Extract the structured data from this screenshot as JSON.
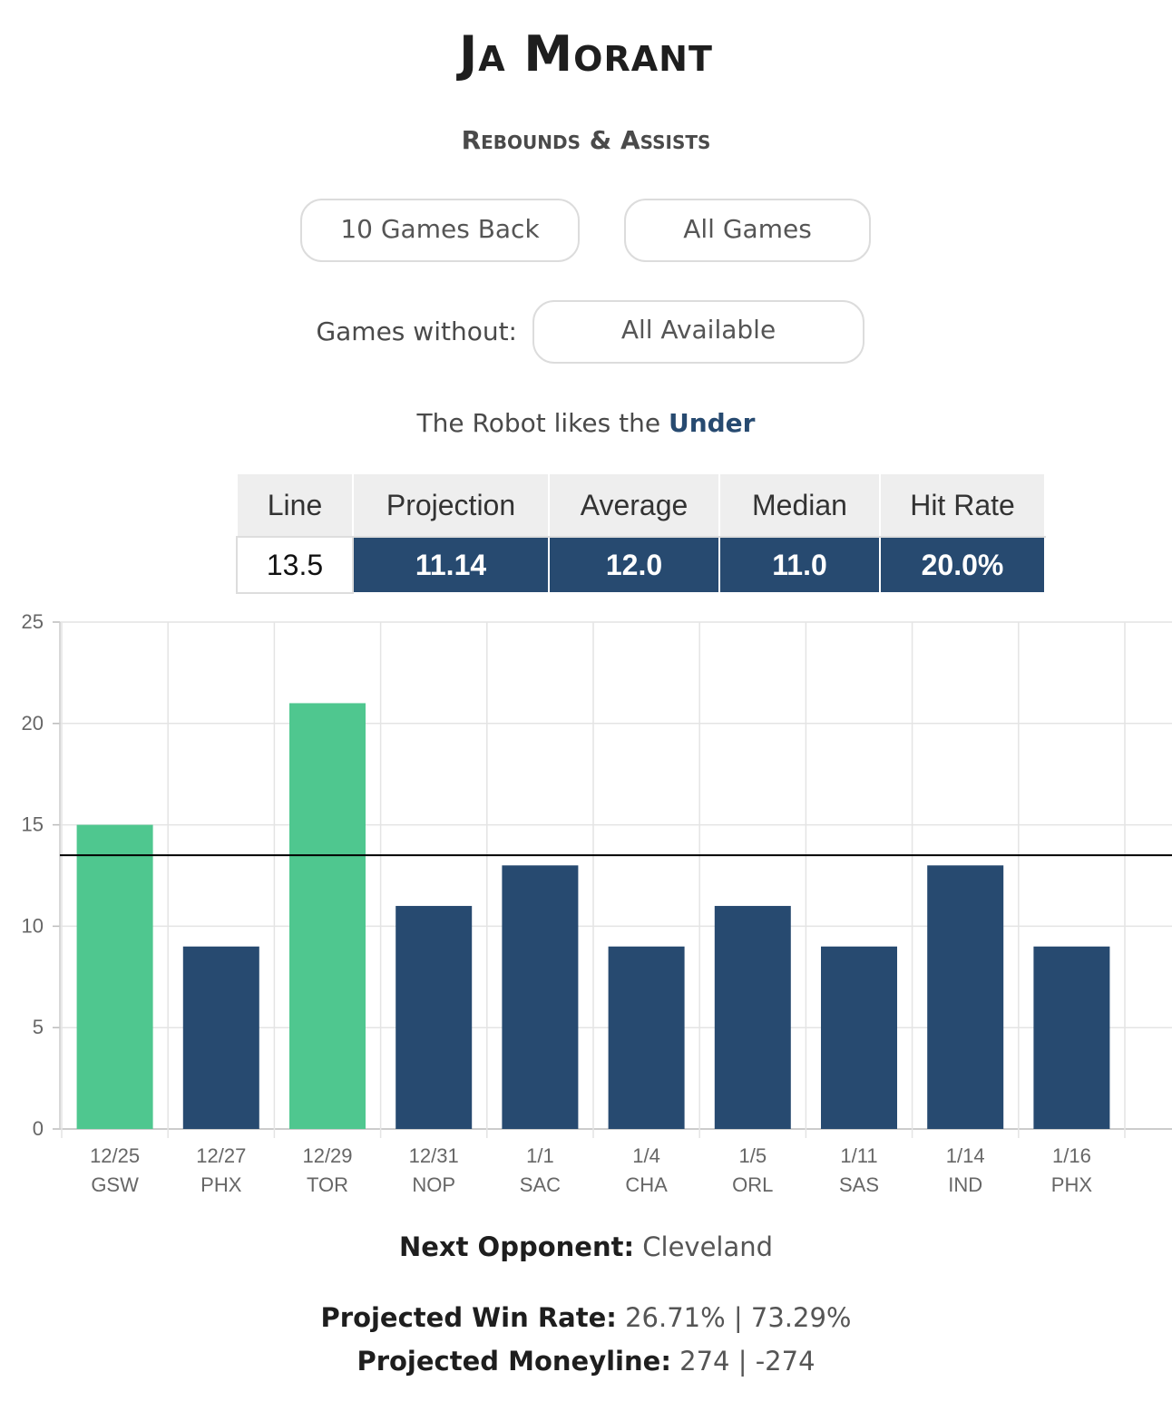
{
  "player": "Ja Morant",
  "stat": "Rebounds & Assists",
  "filters": {
    "games_back": "10 Games Back",
    "all_games": "All Games",
    "without_label": "Games without:",
    "without_value": "All Available"
  },
  "recommendation": {
    "prefix": "The Robot likes the",
    "pick": "Under"
  },
  "stats_table": {
    "headers": [
      "Line",
      "Projection",
      "Average",
      "Median",
      "Hit Rate"
    ],
    "line": "13.5",
    "projection": "11.14",
    "average": "12.0",
    "median": "11.0",
    "hit_rate": "20.0%"
  },
  "colors": {
    "over": "#4fc78f",
    "under": "#274a70",
    "line": "#000000"
  },
  "chart_data": {
    "type": "bar",
    "categories": [
      [
        "12/25",
        "GSW"
      ],
      [
        "12/27",
        "PHX"
      ],
      [
        "12/29",
        "TOR"
      ],
      [
        "12/31",
        "NOP"
      ],
      [
        "1/1",
        "SAC"
      ],
      [
        "1/4",
        "CHA"
      ],
      [
        "1/5",
        "ORL"
      ],
      [
        "1/11",
        "SAS"
      ],
      [
        "1/14",
        "IND"
      ],
      [
        "1/16",
        "PHX"
      ]
    ],
    "values": [
      15,
      9,
      21,
      11,
      13,
      9,
      11,
      9,
      13,
      9
    ],
    "reference_line": 13.5,
    "ylim": [
      0,
      25
    ],
    "yticks": [
      0,
      5,
      10,
      15,
      20,
      25
    ],
    "grid": true
  },
  "footer": {
    "next_opponent_label": "Next Opponent:",
    "next_opponent": "Cleveland",
    "win_rate_label": "Projected Win Rate:",
    "win_rate": "26.71% | 73.29%",
    "moneyline_label": "Projected Moneyline:",
    "moneyline": "274 | -274"
  }
}
